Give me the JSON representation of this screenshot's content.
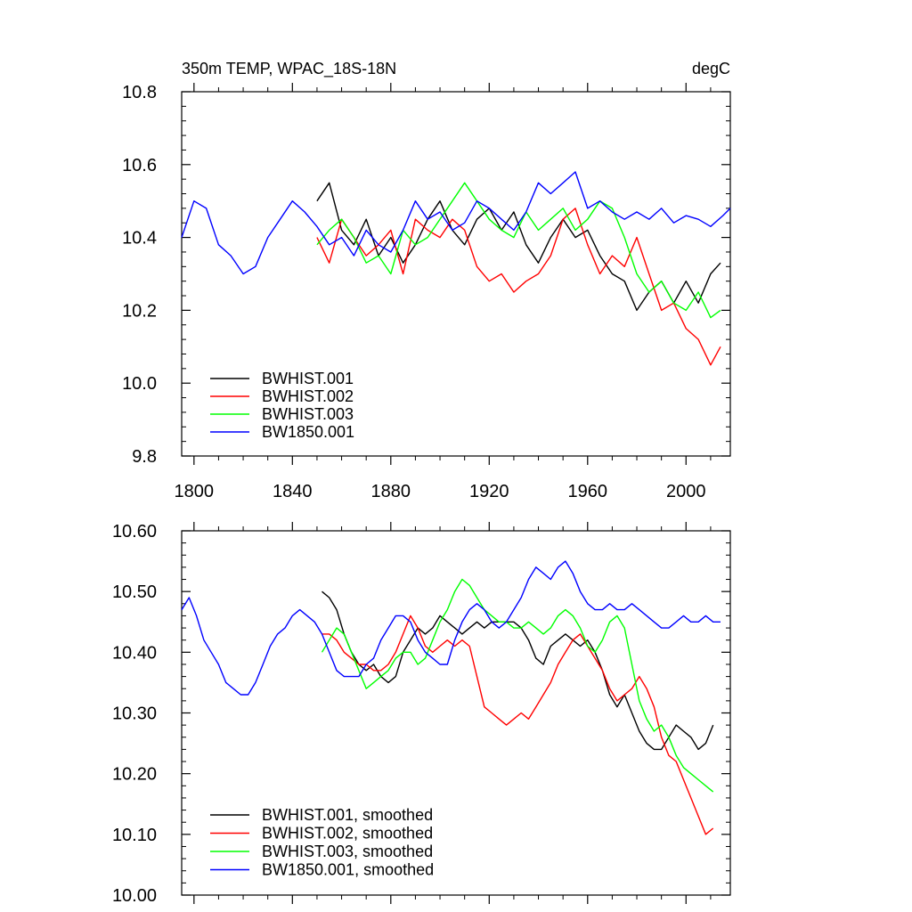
{
  "chart_data": [
    {
      "type": "line",
      "title": "350m TEMP, WPAC_18S-18N",
      "units": "degC",
      "xlim": [
        1795,
        2018
      ],
      "ylim": [
        9.8,
        10.8
      ],
      "xticks": [
        1800,
        1840,
        1880,
        1920,
        1960,
        2000
      ],
      "xtick_labels": [
        "1800",
        "1840",
        "1880",
        "1920",
        "1960",
        "2000"
      ],
      "yticks": [
        9.8,
        10.0,
        10.2,
        10.4,
        10.6,
        10.8
      ],
      "ytick_labels": [
        "9.8",
        "10.0",
        "10.2",
        "10.4",
        "10.6",
        "10.8"
      ],
      "legend_position": "bottom-left",
      "series": [
        {
          "name": "BWHIST.001",
          "color": "#000000",
          "x": [
            1850,
            1855,
            1860,
            1865,
            1870,
            1875,
            1880,
            1885,
            1890,
            1895,
            1900,
            1905,
            1910,
            1915,
            1920,
            1925,
            1930,
            1935,
            1940,
            1945,
            1950,
            1955,
            1960,
            1965,
            1970,
            1975,
            1980,
            1985,
            1990,
            1995,
            2000,
            2005,
            2010,
            2014
          ],
          "values": [
            10.5,
            10.55,
            10.42,
            10.38,
            10.45,
            10.35,
            10.4,
            10.33,
            10.38,
            10.45,
            10.5,
            10.42,
            10.38,
            10.45,
            10.48,
            10.42,
            10.47,
            10.38,
            10.33,
            10.4,
            10.45,
            10.4,
            10.42,
            10.35,
            10.3,
            10.28,
            10.2,
            10.25,
            10.28,
            10.22,
            10.28,
            10.22,
            10.3,
            10.33
          ]
        },
        {
          "name": "BWHIST.002",
          "color": "#ff0000",
          "x": [
            1850,
            1855,
            1860,
            1865,
            1870,
            1875,
            1880,
            1885,
            1890,
            1895,
            1900,
            1905,
            1910,
            1915,
            1920,
            1925,
            1930,
            1935,
            1940,
            1945,
            1950,
            1955,
            1960,
            1965,
            1970,
            1975,
            1980,
            1985,
            1990,
            1995,
            2000,
            2005,
            2010,
            2014
          ],
          "values": [
            10.4,
            10.33,
            10.45,
            10.4,
            10.35,
            10.38,
            10.42,
            10.3,
            10.45,
            10.42,
            10.4,
            10.45,
            10.42,
            10.32,
            10.28,
            10.3,
            10.25,
            10.28,
            10.3,
            10.35,
            10.45,
            10.48,
            10.38,
            10.3,
            10.35,
            10.32,
            10.4,
            10.3,
            10.2,
            10.22,
            10.15,
            10.12,
            10.05,
            10.1
          ]
        },
        {
          "name": "BWHIST.003",
          "color": "#00ff00",
          "x": [
            1850,
            1855,
            1860,
            1865,
            1870,
            1875,
            1880,
            1885,
            1890,
            1895,
            1900,
            1905,
            1910,
            1915,
            1920,
            1925,
            1930,
            1935,
            1940,
            1945,
            1950,
            1955,
            1960,
            1965,
            1970,
            1975,
            1980,
            1985,
            1990,
            1995,
            2000,
            2005,
            2010,
            2014
          ],
          "values": [
            10.38,
            10.42,
            10.45,
            10.4,
            10.33,
            10.35,
            10.3,
            10.42,
            10.38,
            10.4,
            10.45,
            10.5,
            10.55,
            10.5,
            10.45,
            10.42,
            10.4,
            10.47,
            10.42,
            10.45,
            10.48,
            10.42,
            10.45,
            10.5,
            10.48,
            10.4,
            10.3,
            10.25,
            10.28,
            10.22,
            10.2,
            10.25,
            10.18,
            10.2
          ]
        },
        {
          "name": "BW1850.001",
          "color": "#0000ff",
          "x": [
            1795,
            1800,
            1805,
            1810,
            1815,
            1820,
            1825,
            1830,
            1835,
            1840,
            1845,
            1850,
            1855,
            1860,
            1865,
            1870,
            1875,
            1880,
            1885,
            1890,
            1895,
            1900,
            1905,
            1910,
            1915,
            1920,
            1925,
            1930,
            1935,
            1940,
            1945,
            1950,
            1955,
            1960,
            1965,
            1970,
            1975,
            1980,
            1985,
            1990,
            1995,
            2000,
            2005,
            2010,
            2015,
            2018
          ],
          "values": [
            10.4,
            10.5,
            10.48,
            10.38,
            10.35,
            10.3,
            10.32,
            10.4,
            10.45,
            10.5,
            10.47,
            10.43,
            10.38,
            10.4,
            10.35,
            10.42,
            10.38,
            10.36,
            10.42,
            10.5,
            10.45,
            10.47,
            10.42,
            10.44,
            10.5,
            10.48,
            10.45,
            10.42,
            10.47,
            10.55,
            10.52,
            10.55,
            10.58,
            10.48,
            10.5,
            10.47,
            10.45,
            10.47,
            10.45,
            10.48,
            10.44,
            10.46,
            10.45,
            10.43,
            10.46,
            10.48
          ]
        }
      ]
    },
    {
      "type": "line",
      "xlim": [
        1795,
        2018
      ],
      "ylim": [
        10.0,
        10.6
      ],
      "xticks": [
        1800,
        1840,
        1880,
        1920,
        1960,
        2000
      ],
      "yticks": [
        10.0,
        10.1,
        10.2,
        10.3,
        10.4,
        10.5,
        10.6
      ],
      "ytick_labels": [
        "10.00",
        "10.10",
        "10.20",
        "10.30",
        "10.40",
        "10.50",
        "10.60"
      ],
      "legend_position": "bottom-left",
      "series": [
        {
          "name": "BWHIST.001, smoothed",
          "color": "#000000",
          "x": [
            1852,
            1855,
            1858,
            1861,
            1864,
            1867,
            1870,
            1873,
            1876,
            1879,
            1882,
            1885,
            1888,
            1891,
            1894,
            1897,
            1900,
            1903,
            1906,
            1909,
            1912,
            1915,
            1918,
            1921,
            1924,
            1927,
            1930,
            1933,
            1936,
            1939,
            1942,
            1945,
            1948,
            1951,
            1954,
            1957,
            1960,
            1963,
            1966,
            1969,
            1972,
            1975,
            1978,
            1981,
            1984,
            1987,
            1990,
            1993,
            1996,
            1999,
            2002,
            2005,
            2008,
            2011
          ],
          "values": [
            10.5,
            10.49,
            10.47,
            10.43,
            10.4,
            10.38,
            10.37,
            10.38,
            10.36,
            10.35,
            10.36,
            10.4,
            10.42,
            10.44,
            10.43,
            10.44,
            10.46,
            10.45,
            10.44,
            10.43,
            10.44,
            10.45,
            10.44,
            10.45,
            10.45,
            10.45,
            10.45,
            10.44,
            10.42,
            10.39,
            10.38,
            10.41,
            10.42,
            10.43,
            10.42,
            10.41,
            10.42,
            10.4,
            10.37,
            10.33,
            10.31,
            10.33,
            10.3,
            10.27,
            10.25,
            10.24,
            10.24,
            10.26,
            10.28,
            10.27,
            10.26,
            10.24,
            10.25,
            10.28
          ]
        },
        {
          "name": "BWHIST.002, smoothed",
          "color": "#ff0000",
          "x": [
            1852,
            1855,
            1858,
            1861,
            1864,
            1867,
            1870,
            1873,
            1876,
            1879,
            1882,
            1885,
            1888,
            1891,
            1894,
            1897,
            1900,
            1903,
            1906,
            1909,
            1912,
            1915,
            1918,
            1921,
            1924,
            1927,
            1930,
            1933,
            1936,
            1939,
            1942,
            1945,
            1948,
            1951,
            1954,
            1957,
            1960,
            1963,
            1966,
            1969,
            1972,
            1975,
            1978,
            1981,
            1984,
            1987,
            1990,
            1993,
            1996,
            1999,
            2002,
            2005,
            2008,
            2011
          ],
          "values": [
            10.43,
            10.43,
            10.42,
            10.4,
            10.39,
            10.38,
            10.38,
            10.37,
            10.37,
            10.38,
            10.4,
            10.43,
            10.46,
            10.44,
            10.41,
            10.4,
            10.41,
            10.42,
            10.41,
            10.42,
            10.41,
            10.36,
            10.31,
            10.3,
            10.29,
            10.28,
            10.29,
            10.3,
            10.29,
            10.31,
            10.33,
            10.35,
            10.38,
            10.4,
            10.42,
            10.43,
            10.41,
            10.39,
            10.37,
            10.34,
            10.32,
            10.33,
            10.34,
            10.36,
            10.34,
            10.31,
            10.26,
            10.23,
            10.22,
            10.19,
            10.16,
            10.13,
            10.1,
            10.11
          ]
        },
        {
          "name": "BWHIST.003, smoothed",
          "color": "#00ff00",
          "x": [
            1852,
            1855,
            1858,
            1861,
            1864,
            1867,
            1870,
            1873,
            1876,
            1879,
            1882,
            1885,
            1888,
            1891,
            1894,
            1897,
            1900,
            1903,
            1906,
            1909,
            1912,
            1915,
            1918,
            1921,
            1924,
            1927,
            1930,
            1933,
            1936,
            1939,
            1942,
            1945,
            1948,
            1951,
            1954,
            1957,
            1960,
            1963,
            1966,
            1969,
            1972,
            1975,
            1978,
            1981,
            1984,
            1987,
            1990,
            1993,
            1996,
            1999,
            2002,
            2005,
            2008,
            2011
          ],
          "values": [
            10.4,
            10.42,
            10.44,
            10.43,
            10.4,
            10.37,
            10.34,
            10.35,
            10.36,
            10.37,
            10.39,
            10.4,
            10.4,
            10.38,
            10.39,
            10.42,
            10.45,
            10.47,
            10.5,
            10.52,
            10.51,
            10.49,
            10.47,
            10.46,
            10.45,
            10.45,
            10.44,
            10.44,
            10.45,
            10.44,
            10.43,
            10.44,
            10.46,
            10.47,
            10.46,
            10.44,
            10.41,
            10.4,
            10.42,
            10.45,
            10.46,
            10.44,
            10.38,
            10.32,
            10.29,
            10.27,
            10.28,
            10.26,
            10.23,
            10.21,
            10.2,
            10.19,
            10.18,
            10.17
          ]
        },
        {
          "name": "BW1850.001, smoothed",
          "color": "#0000ff",
          "x": [
            1795,
            1798,
            1801,
            1804,
            1807,
            1810,
            1813,
            1816,
            1819,
            1822,
            1825,
            1828,
            1831,
            1834,
            1837,
            1840,
            1843,
            1846,
            1849,
            1852,
            1855,
            1858,
            1861,
            1864,
            1867,
            1870,
            1873,
            1876,
            1879,
            1882,
            1885,
            1888,
            1891,
            1894,
            1897,
            1900,
            1903,
            1906,
            1909,
            1912,
            1915,
            1918,
            1921,
            1924,
            1927,
            1930,
            1933,
            1936,
            1939,
            1942,
            1945,
            1948,
            1951,
            1954,
            1957,
            1960,
            1963,
            1966,
            1969,
            1972,
            1975,
            1978,
            1981,
            1984,
            1987,
            1990,
            1993,
            1996,
            1999,
            2002,
            2005,
            2008,
            2011,
            2014
          ],
          "values": [
            10.47,
            10.49,
            10.46,
            10.42,
            10.4,
            10.38,
            10.35,
            10.34,
            10.33,
            10.33,
            10.35,
            10.38,
            10.41,
            10.43,
            10.44,
            10.46,
            10.47,
            10.46,
            10.45,
            10.43,
            10.4,
            10.37,
            10.36,
            10.36,
            10.36,
            10.38,
            10.39,
            10.42,
            10.44,
            10.46,
            10.46,
            10.45,
            10.42,
            10.4,
            10.39,
            10.38,
            10.38,
            10.42,
            10.45,
            10.47,
            10.48,
            10.47,
            10.45,
            10.44,
            10.45,
            10.47,
            10.49,
            10.52,
            10.54,
            10.53,
            10.52,
            10.54,
            10.55,
            10.53,
            10.5,
            10.48,
            10.47,
            10.47,
            10.48,
            10.47,
            10.47,
            10.48,
            10.47,
            10.46,
            10.45,
            10.44,
            10.44,
            10.45,
            10.46,
            10.45,
            10.45,
            10.46,
            10.45,
            10.45
          ]
        }
      ]
    }
  ]
}
